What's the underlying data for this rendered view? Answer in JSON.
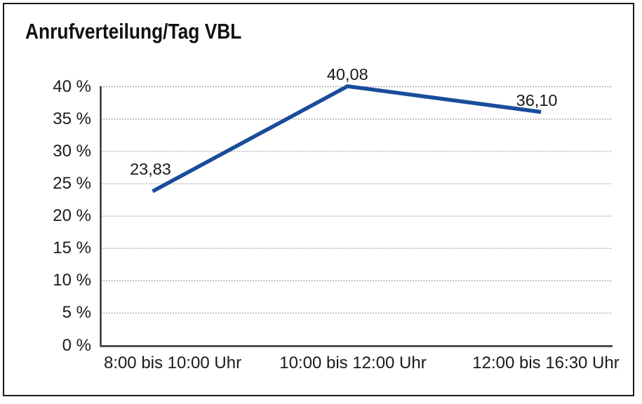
{
  "chart_data": {
    "type": "line",
    "title": "Anrufverteilung/Tag VBL",
    "categories": [
      "8:00 bis 10:00 Uhr",
      "10:00 bis 12:00 Uhr",
      "12:00 bis 16:30 Uhr"
    ],
    "series": [
      {
        "values": [
          23.83,
          40.08,
          36.1
        ],
        "data_labels": [
          "23,83",
          "40,08",
          "36,10"
        ]
      }
    ],
    "y_tick_values": [
      0,
      5,
      10,
      15,
      20,
      25,
      30,
      35,
      40
    ],
    "y_tick_labels": [
      "0 %",
      "5 %",
      "10 %",
      "15 %",
      "20 %",
      "25 %",
      "30 %",
      "35 %",
      "40 %"
    ],
    "ylim": [
      0,
      40
    ],
    "xlabel": "",
    "ylabel": "",
    "grid": "horizontal-dotted",
    "legend": "none",
    "colors": {
      "line": "#1a4c9c",
      "grid": "#909090",
      "y_axis": "#1a1a1a",
      "x_axis": "#4f4f4f",
      "text": "#1a1a1a",
      "background": "#ffffff",
      "frame_border": "#1a1a1a"
    }
  }
}
